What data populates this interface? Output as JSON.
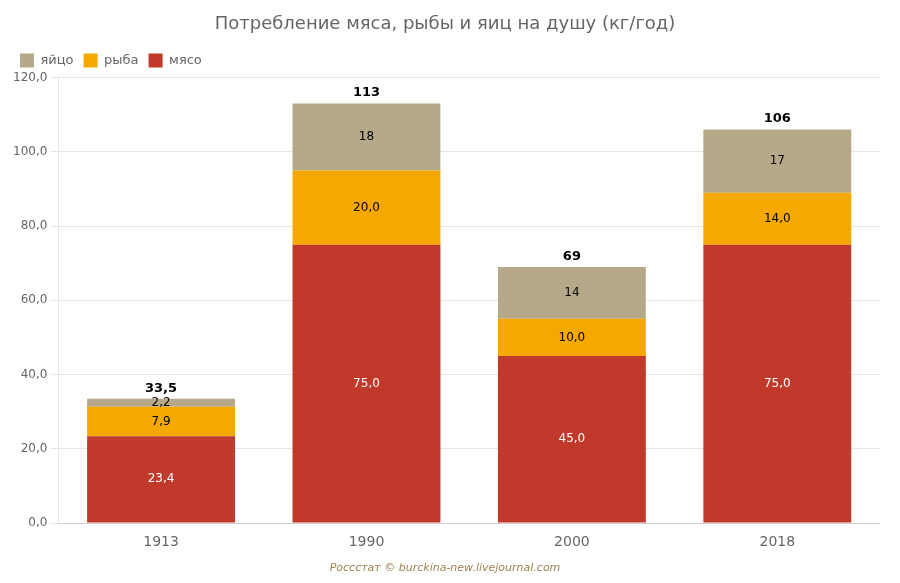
{
  "chart_data": {
    "type": "bar",
    "title": "Потребление мяса, рыбы и яиц на душу (кг/год)",
    "categories": [
      "1913",
      "1990",
      "2000",
      "2018"
    ],
    "stacked": true,
    "series": [
      {
        "name": "мясо",
        "color": "#c0392b",
        "values": [
          23.4,
          75.0,
          45.0,
          75.0
        ],
        "value_labels": [
          "23,4",
          "75,0",
          "45,0",
          "75,0"
        ]
      },
      {
        "name": "рыба",
        "color": "#f5a800",
        "values": [
          7.9,
          20.0,
          10.0,
          14.0
        ],
        "value_labels": [
          "7,9",
          "20,0",
          "10,0",
          "14,0"
        ]
      },
      {
        "name": "яйцо",
        "color": "#b5a98a",
        "values": [
          2.2,
          18.0,
          14.0,
          17.0
        ],
        "value_labels": [
          "2,2",
          "18",
          "14",
          "17"
        ]
      }
    ],
    "totals": [
      33.5,
      113,
      69,
      106
    ],
    "total_labels": [
      "33,5",
      "113",
      "69",
      "106"
    ],
    "ylim": [
      0,
      120
    ],
    "yticks": [
      {
        "value": 0,
        "label": "0,0"
      },
      {
        "value": 20,
        "label": "20,0"
      },
      {
        "value": 40,
        "label": "40,0"
      },
      {
        "value": 60,
        "label": "60,0"
      },
      {
        "value": 80,
        "label": "80,0"
      },
      {
        "value": 100,
        "label": "100,0"
      },
      {
        "value": 120,
        "label": "120,0"
      }
    ],
    "grid": true,
    "legend": "upper left",
    "data_labels": true,
    "annotations": [
      "Россстат © burckina-new.livejournal.com"
    ]
  }
}
